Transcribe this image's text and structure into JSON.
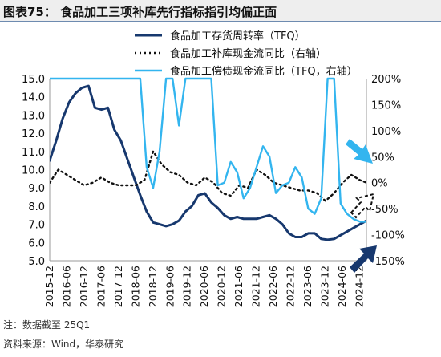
{
  "title": "图表75：  食品加工三项补库先行指标指引均偏正面",
  "footer": {
    "note": "注：数据截至 25Q1",
    "source": "资料来源：Wind，华泰研究"
  },
  "chart_data": {
    "type": "line",
    "title": "图表75：  食品加工三项补库先行指标指引均偏正面",
    "x_labels": [
      "2015-12",
      "2016-06",
      "2016-12",
      "2017-06",
      "2017-12",
      "2018-06",
      "2018-12",
      "2019-06",
      "2019-12",
      "2020-06",
      "2020-12",
      "2021-06",
      "2021-12",
      "2022-06",
      "2022-12",
      "2023-06",
      "2023-12",
      "2024-06",
      "2024-12"
    ],
    "x": [
      0,
      2,
      4,
      6,
      8,
      10,
      12,
      14,
      16,
      18,
      20,
      22,
      24,
      26,
      28,
      30,
      32,
      34,
      36,
      38,
      40,
      42,
      44,
      46,
      48,
      50,
      52,
      54,
      56,
      58,
      60,
      62,
      64,
      66,
      68,
      70,
      72,
      74,
      76,
      78,
      80,
      82,
      84,
      86,
      88,
      90,
      92,
      94,
      96,
      98,
      100,
      102,
      104,
      106,
      108,
      110,
      112,
      114,
      116,
      118,
      120,
      122,
      124,
      126,
      128,
      130,
      132,
      134,
      136,
      138,
      140,
      142,
      144,
      146,
      147
    ],
    "left_axis": {
      "min": 5.0,
      "max": 15.0,
      "step": 1.0,
      "ticks": [
        "5.0",
        "6.0",
        "7.0",
        "8.0",
        "9.0",
        "10.0",
        "11.0",
        "12.0",
        "13.0",
        "14.0",
        "15.0"
      ]
    },
    "right_axis": {
      "min": -150,
      "max": 200,
      "step": 50,
      "ticks": [
        "-150%",
        "-100%",
        "-50%",
        "0%",
        "50%",
        "100%",
        "150%",
        "200%"
      ]
    },
    "grid": false,
    "legend_position": "top",
    "series": [
      {
        "name": "食品加工存货周转率（TFQ）",
        "axis": "left",
        "color": "#17386e",
        "dash": "solid",
        "width": 3,
        "x": [
          0,
          3,
          6,
          9,
          12,
          15,
          18,
          21,
          24,
          27,
          30,
          33,
          36,
          39,
          42,
          45,
          48,
          51,
          54,
          57,
          60,
          63,
          66,
          69,
          72,
          75,
          78,
          81,
          84,
          87,
          90,
          93,
          96,
          99,
          102,
          105,
          108,
          111,
          114,
          117,
          120,
          123,
          126,
          129,
          132,
          135,
          138,
          141,
          144,
          147
        ],
        "values": [
          10.5,
          11.6,
          12.8,
          13.7,
          14.2,
          14.5,
          14.6,
          13.4,
          13.3,
          13.4,
          12.2,
          11.6,
          10.6,
          9.6,
          8.6,
          7.7,
          7.1,
          7.0,
          6.9,
          7.0,
          7.2,
          7.7,
          8.0,
          8.6,
          8.7,
          8.2,
          7.9,
          7.5,
          7.3,
          7.4,
          7.3,
          7.3,
          7.3,
          7.4,
          7.5,
          7.3,
          7.0,
          6.5,
          6.3,
          6.3,
          6.5,
          6.5,
          6.2,
          6.15,
          6.2,
          6.4,
          6.6,
          6.8,
          7.0,
          7.2
        ]
      },
      {
        "name": "食品加工补库现金流同比（右轴）",
        "axis": "right",
        "color": "#111111",
        "dash": "dotted",
        "width": 2.4,
        "x": [
          0,
          4,
          8,
          12,
          16,
          20,
          24,
          28,
          32,
          36,
          40,
          44,
          48,
          52,
          56,
          60,
          64,
          68,
          72,
          76,
          80,
          84,
          88,
          92,
          96,
          100,
          104,
          108,
          112,
          116,
          120,
          124,
          128,
          132,
          136,
          140,
          144,
          147
        ],
        "values": [
          0,
          25,
          15,
          5,
          -5,
          0,
          10,
          0,
          -5,
          -5,
          -5,
          5,
          60,
          35,
          20,
          15,
          0,
          -5,
          10,
          0,
          -20,
          -25,
          -5,
          -10,
          25,
          15,
          0,
          -5,
          -10,
          -15,
          -15,
          -20,
          -35,
          -20,
          0,
          15,
          5,
          0
        ]
      },
      {
        "name": "食品加工偿债现金流同比（TFQ，右轴）",
        "axis": "right",
        "color": "#33b5ef",
        "dash": "solid",
        "width": 2.4,
        "x": [
          0,
          3,
          6,
          9,
          12,
          15,
          18,
          21,
          24,
          27,
          30,
          33,
          36,
          39,
          42,
          45,
          48,
          51,
          54,
          57,
          60,
          63,
          66,
          69,
          72,
          75,
          78,
          81,
          84,
          87,
          90,
          93,
          96,
          99,
          102,
          105,
          108,
          111,
          114,
          117,
          120,
          123,
          126,
          129,
          132,
          135,
          138,
          141,
          144,
          147
        ],
        "values": [
          200,
          200,
          200,
          200,
          200,
          200,
          200,
          200,
          200,
          200,
          200,
          200,
          200,
          200,
          200,
          30,
          -10,
          60,
          200,
          200,
          110,
          200,
          200,
          200,
          200,
          200,
          -5,
          0,
          40,
          20,
          -30,
          -10,
          30,
          70,
          50,
          -20,
          -5,
          0,
          30,
          10,
          -50,
          -60,
          -30,
          200,
          200,
          -40,
          -60,
          -70,
          -75,
          -75
        ]
      }
    ]
  }
}
